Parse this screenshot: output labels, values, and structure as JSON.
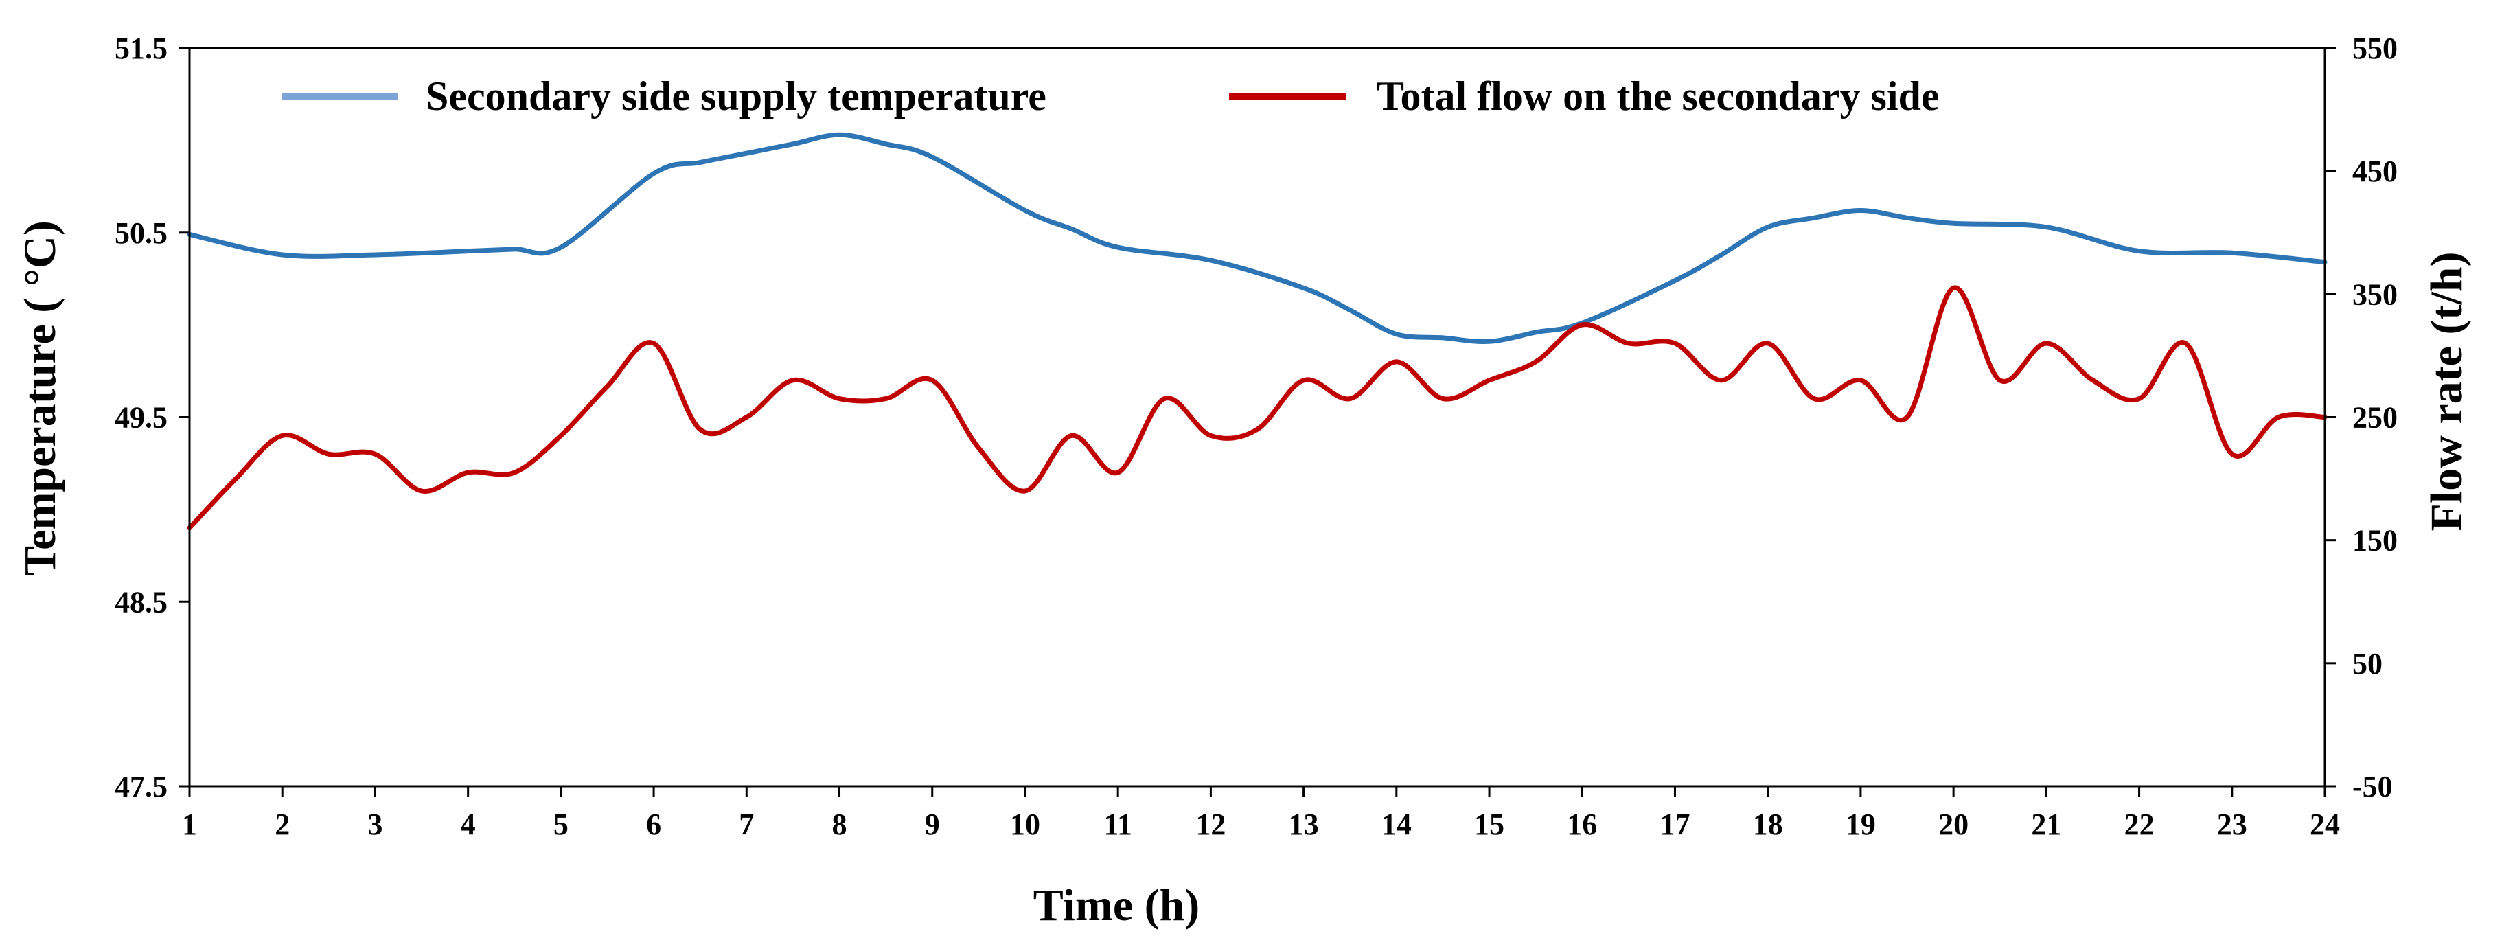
{
  "chart_data": {
    "type": "line",
    "title": "",
    "xlabel": "Time (h)",
    "ylabel_left": "Temperature ( °C)",
    "ylabel_right": "Flow rate (t/h)",
    "xlim": [
      1,
      24
    ],
    "ylim_left": [
      47.5,
      51.5
    ],
    "ylim_right": [
      -50,
      550
    ],
    "x_ticks": [
      "1",
      "2",
      "3",
      "4",
      "5",
      "6",
      "7",
      "8",
      "9",
      "10",
      "11",
      "12",
      "13",
      "14",
      "15",
      "16",
      "17",
      "18",
      "19",
      "20",
      "21",
      "22",
      "23",
      "24"
    ],
    "y_left_ticks": [
      "47.5",
      "48.5",
      "49.5",
      "50.5",
      "51.5"
    ],
    "y_right_ticks": [
      "-50",
      "50",
      "150",
      "250",
      "350",
      "450",
      "550"
    ],
    "grid": false,
    "legend_position": "top",
    "series": [
      {
        "name": "Secondary side supply temperature",
        "axis": "left",
        "color": "#2E75B6",
        "legend_color": "#7BA3D8",
        "x": [
          1,
          2,
          3,
          4,
          4.5,
          5,
          6,
          6.5,
          7,
          7.5,
          8,
          8.5,
          9,
          10,
          10.5,
          11,
          12,
          13,
          13.5,
          14,
          14.5,
          15,
          15.5,
          16,
          17,
          17.5,
          18,
          18.5,
          19,
          19.5,
          20,
          21,
          22,
          23,
          24
        ],
        "values": [
          50.49,
          50.38,
          50.38,
          50.4,
          50.41,
          50.42,
          50.82,
          50.88,
          50.93,
          50.98,
          51.03,
          50.98,
          50.91,
          50.62,
          50.52,
          50.42,
          50.35,
          50.2,
          50.08,
          49.95,
          49.93,
          49.91,
          49.96,
          50.01,
          50.24,
          50.38,
          50.53,
          50.58,
          50.62,
          50.58,
          50.55,
          50.53,
          50.4,
          50.39,
          50.34
        ]
      },
      {
        "name": "Total flow on the secondary side",
        "axis": "right",
        "color": "#C00000",
        "legend_color": "#C00000",
        "x": [
          1,
          1.5,
          2,
          2.5,
          3,
          3.5,
          4,
          4.5,
          5,
          5.5,
          6,
          6.5,
          7,
          7.5,
          8,
          8.5,
          9,
          9.5,
          10,
          10.5,
          11,
          11.5,
          12,
          12.5,
          13,
          13.5,
          14,
          14.5,
          15,
          15.5,
          16,
          16.5,
          17,
          17.5,
          18,
          18.5,
          19,
          19.5,
          20,
          20.5,
          21,
          21.5,
          22,
          22.5,
          23,
          23.5,
          24
        ],
        "values": [
          160,
          200,
          235,
          220,
          220,
          190,
          205,
          205,
          235,
          275,
          310,
          240,
          250,
          280,
          265,
          265,
          280,
          225,
          190,
          235,
          205,
          265,
          235,
          240,
          280,
          265,
          295,
          265,
          280,
          295,
          325,
          310,
          310,
          280,
          310,
          265,
          280,
          250,
          355,
          280,
          310,
          280,
          265,
          310,
          220,
          250,
          250
        ]
      }
    ]
  }
}
